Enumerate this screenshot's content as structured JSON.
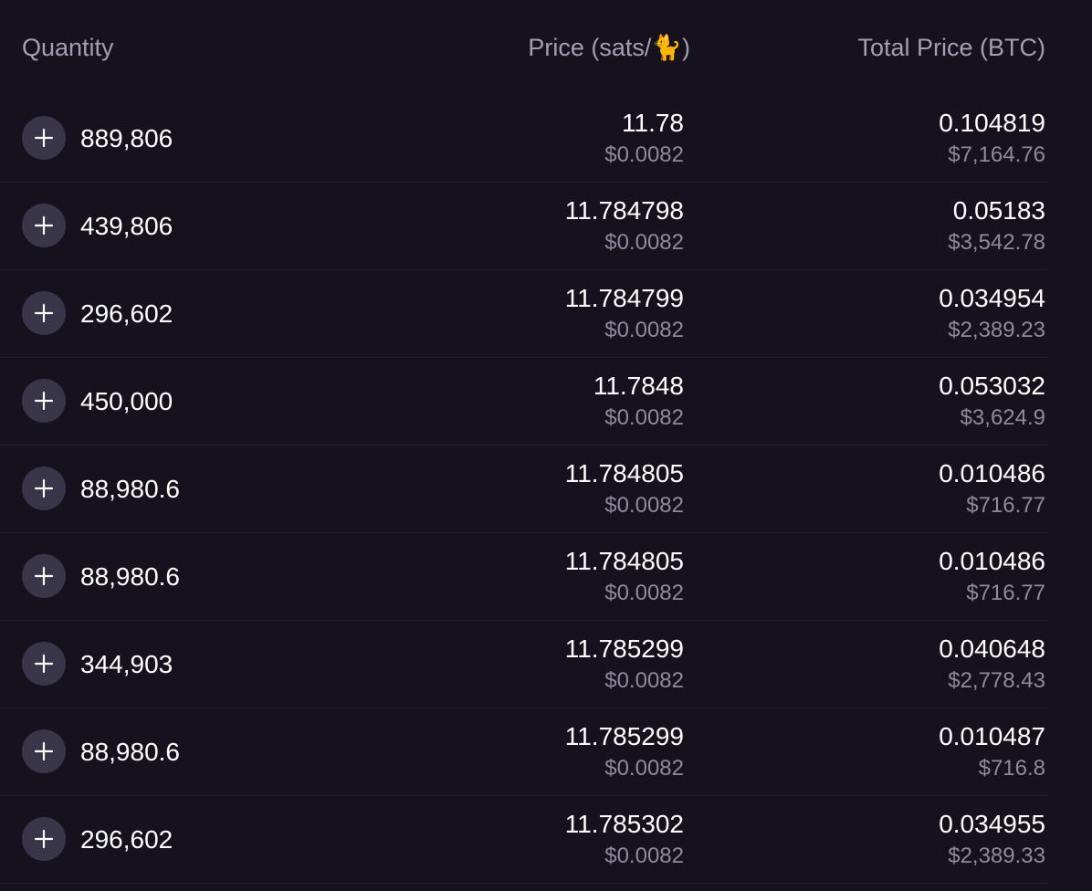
{
  "columns": {
    "quantity": "Quantity",
    "price": "Price (sats/🐈)",
    "total": "Total Price (BTC)"
  },
  "rows": [
    {
      "quantity": "889,806",
      "price": "11.78",
      "price_usd": "$0.0082",
      "total": "0.104819",
      "total_usd": "$7,164.76"
    },
    {
      "quantity": "439,806",
      "price": "11.784798",
      "price_usd": "$0.0082",
      "total": "0.05183",
      "total_usd": "$3,542.78"
    },
    {
      "quantity": "296,602",
      "price": "11.784799",
      "price_usd": "$0.0082",
      "total": "0.034954",
      "total_usd": "$2,389.23"
    },
    {
      "quantity": "450,000",
      "price": "11.7848",
      "price_usd": "$0.0082",
      "total": "0.053032",
      "total_usd": "$3,624.9"
    },
    {
      "quantity": "88,980.6",
      "price": "11.784805",
      "price_usd": "$0.0082",
      "total": "0.010486",
      "total_usd": "$716.77"
    },
    {
      "quantity": "88,980.6",
      "price": "11.784805",
      "price_usd": "$0.0082",
      "total": "0.010486",
      "total_usd": "$716.77"
    },
    {
      "quantity": "344,903",
      "price": "11.785299",
      "price_usd": "$0.0082",
      "total": "0.040648",
      "total_usd": "$2,778.43"
    },
    {
      "quantity": "88,980.6",
      "price": "11.785299",
      "price_usd": "$0.0082",
      "total": "0.010487",
      "total_usd": "$716.8"
    },
    {
      "quantity": "296,602",
      "price": "11.785302",
      "price_usd": "$0.0082",
      "total": "0.034955",
      "total_usd": "$2,389.33"
    }
  ],
  "icons": {
    "row_action": "plus-icon"
  },
  "colors": {
    "background": "#15121d",
    "header_text": "#a39fb2",
    "primary_text": "#ffffff",
    "secondary_text": "#8e8a9c",
    "button_bg": "#3a3649",
    "divider": "#24202f"
  }
}
